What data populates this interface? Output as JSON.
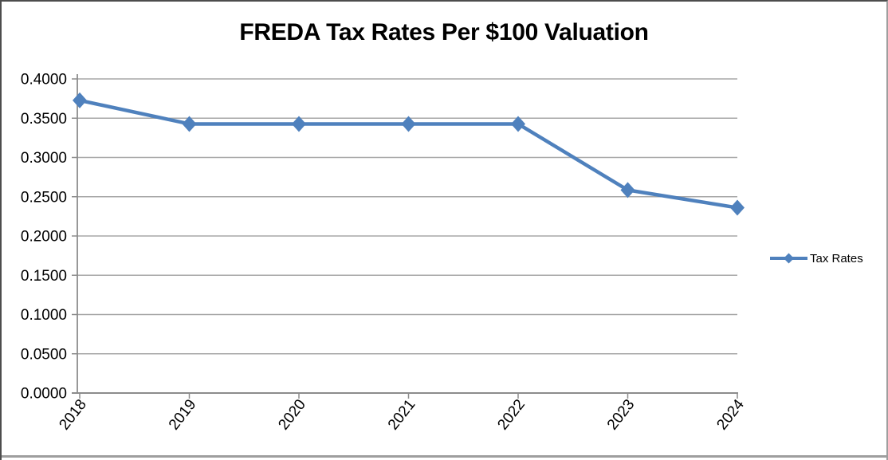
{
  "chart_data": {
    "type": "line",
    "title": "FREDA Tax Rates Per $100 Valuation",
    "categories": [
      "2018",
      "2019",
      "2020",
      "2021",
      "2022",
      "2023",
      "2024"
    ],
    "series": [
      {
        "name": "Tax Rates",
        "color": "#4F81BD",
        "marker": "diamond",
        "values": [
          0.3727,
          0.3427,
          0.3427,
          0.3427,
          0.3427,
          0.2585,
          0.236
        ]
      }
    ],
    "ylim": [
      0,
      0.4
    ],
    "yticks": [
      {
        "value": 0.0,
        "label": "0.0000"
      },
      {
        "value": 0.05,
        "label": "0.0500"
      },
      {
        "value": 0.1,
        "label": "0.1000"
      },
      {
        "value": 0.15,
        "label": "0.1500"
      },
      {
        "value": 0.2,
        "label": "0.2000"
      },
      {
        "value": 0.25,
        "label": "0.2500"
      },
      {
        "value": 0.3,
        "label": "0.3000"
      },
      {
        "value": 0.35,
        "label": "0.3500"
      },
      {
        "value": 0.4,
        "label": "0.4000"
      }
    ],
    "xlabel": "",
    "ylabel": "",
    "grid": true,
    "legend_position": "right",
    "x_label_rotation_deg": -52,
    "colors": {
      "series": "#4F81BD",
      "gridline": "#A7A7A7",
      "axis": "#8C8C8C",
      "text": "#000000",
      "background": "#FFFFFF"
    }
  }
}
